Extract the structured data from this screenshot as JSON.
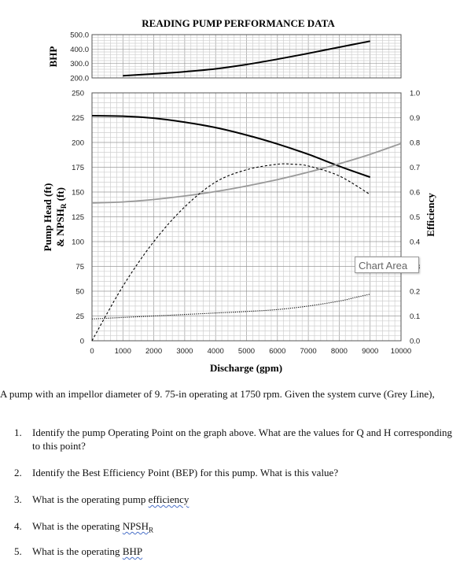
{
  "chart_data": [
    {
      "type": "line",
      "title": "READING PUMP PERFORMANCE DATA",
      "ylabel": "BHP",
      "ylim": [
        200,
        500
      ],
      "yticks": [
        "200.0",
        "300.0",
        "400.0",
        "500.0"
      ],
      "xlim": [
        0,
        10000
      ],
      "grid": true,
      "series": [
        {
          "x": [
            1000,
            2000,
            3000,
            4000,
            5000,
            6000,
            7000,
            8000,
            9000
          ],
          "y": [
            215,
            228,
            243,
            263,
            293,
            330,
            370,
            413,
            455
          ],
          "color": "#000000",
          "style": "solid"
        }
      ]
    },
    {
      "type": "line",
      "xlabel": "Discharge (gpm)",
      "ylabel": "Pump Head (ft) & NPSHR (ft)",
      "ylabel_line1": "Pump Head (ft)",
      "ylabel_line2_main": "& NPSH",
      "ylabel_line2_sub": "R",
      "ylabel_line2_end": " (ft)",
      "y2label": "Efficiency",
      "xlim": [
        0,
        10000
      ],
      "ylim": [
        0,
        250
      ],
      "y2lim": [
        0,
        1.0
      ],
      "xticks": [
        "0",
        "1000",
        "2000",
        "3000",
        "4000",
        "5000",
        "6000",
        "7000",
        "8000",
        "9000",
        "10000"
      ],
      "yticks": [
        "0",
        "25",
        "50",
        "75",
        "100",
        "125",
        "150",
        "175",
        "200",
        "225",
        "250"
      ],
      "y2ticks": [
        "0.0",
        "0.1",
        "0.2",
        "0.3",
        "0.4",
        "0.5",
        "0.6",
        "0.7",
        "0.8",
        "0.9",
        "1.0"
      ],
      "grid": true,
      "series": [
        {
          "axis": "left",
          "color": "#000000",
          "style": "solid",
          "x": [
            0,
            1000,
            2000,
            3000,
            4000,
            5000,
            6000,
            7000,
            8000,
            9000
          ],
          "y": [
            227,
            226.5,
            224.5,
            220.5,
            215,
            207.5,
            198.5,
            188,
            176,
            165
          ]
        },
        {
          "axis": "left",
          "color": "#999999",
          "style": "solid",
          "x": [
            0,
            1000,
            2000,
            3000,
            4000,
            5000,
            6000,
            7000,
            8000,
            9000,
            10000
          ],
          "y": [
            139,
            140,
            142.5,
            146,
            150.5,
            156,
            162.5,
            170,
            178.5,
            188,
            199
          ]
        },
        {
          "axis": "left",
          "color": "#000000",
          "style": "dotted",
          "x": [
            0,
            1000,
            2000,
            3000,
            4000,
            5000,
            6000,
            7000,
            8000,
            8500,
            9000
          ],
          "y": [
            22,
            23.5,
            25,
            26.5,
            28,
            29.5,
            31.5,
            35,
            40,
            43.5,
            47
          ]
        },
        {
          "axis": "right",
          "color": "#000000",
          "style": "dashed",
          "x": [
            0,
            1000,
            2000,
            3000,
            4000,
            5000,
            6000,
            6500,
            7000,
            8000,
            9000
          ],
          "y": [
            0.0,
            0.22,
            0.4,
            0.54,
            0.64,
            0.69,
            0.712,
            0.712,
            0.705,
            0.665,
            0.59
          ]
        }
      ]
    }
  ],
  "tooltip": {
    "label": "Chart Area"
  },
  "document": {
    "intro": "A pump with an impellor diameter of 9. 75-in operating at 1750 rpm. Given the system curve (Grey Line),",
    "questions": [
      {
        "num": "1.",
        "pre": "Identify the pump Operating Point on the graph above.  What are the values for Q and H corresponding to this point?",
        "mark": "",
        "post": ""
      },
      {
        "num": "2.",
        "pre": "Identify the Best Efficiency Point (BEP) for this pump.  What is this value?",
        "mark": "",
        "post": ""
      },
      {
        "num": "3.",
        "pre": "What is the operating pump ",
        "mark": "efficiency",
        "post": ""
      },
      {
        "num": "4.",
        "pre": "What is the operating ",
        "mark": "NPSHR",
        "post": ""
      },
      {
        "num": "5.",
        "pre": "What is the operating ",
        "mark": "BHP",
        "post": ""
      }
    ]
  }
}
